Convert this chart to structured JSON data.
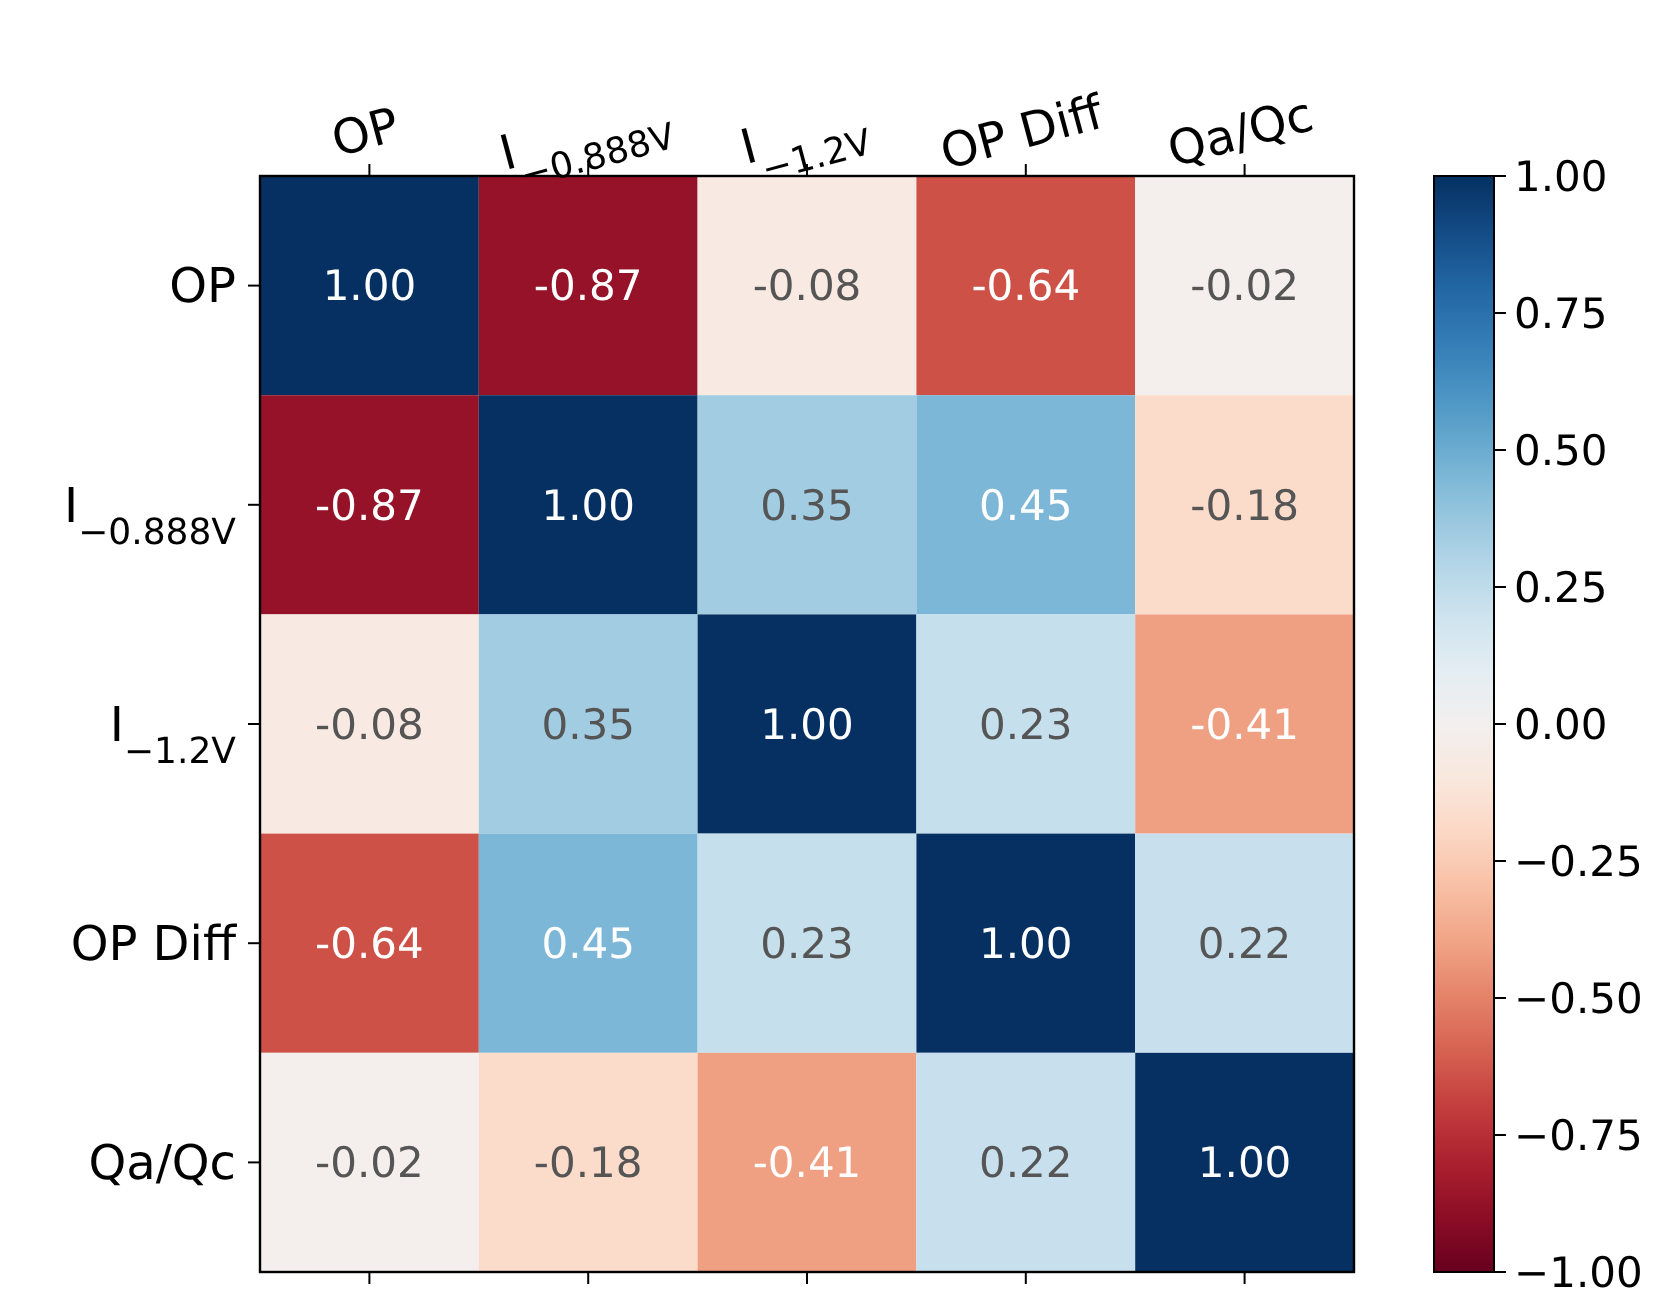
{
  "chart_data": {
    "type": "heatmap",
    "categories": [
      "OP",
      "I$_{−0.888V}$",
      "I$_{−1.2V}$",
      "OP Diff",
      "Qa/Qc"
    ],
    "y_categories": [
      "OP",
      "I$_{−0.888V}$",
      "I$_{−1.2V}$",
      "OP Diff",
      "Qa/Qc"
    ],
    "cells": [
      [
        1.0,
        -0.87,
        -0.08,
        -0.64,
        -0.02
      ],
      [
        -0.87,
        1.0,
        0.35,
        0.45,
        -0.18
      ],
      [
        -0.08,
        0.35,
        1.0,
        0.23,
        -0.41
      ],
      [
        -0.64,
        0.45,
        0.23,
        1.0,
        0.22
      ],
      [
        -0.02,
        -0.18,
        -0.41,
        0.22,
        1.0
      ]
    ],
    "cell_labels": [
      [
        "1.00",
        "-0.87",
        "-0.08",
        "-0.64",
        "-0.02"
      ],
      [
        "-0.87",
        "1.00",
        "0.35",
        "0.45",
        "-0.18"
      ],
      [
        "-0.08",
        "0.35",
        "1.00",
        "0.23",
        "-0.41"
      ],
      [
        "-0.64",
        "0.45",
        "0.23",
        "1.00",
        "0.22"
      ],
      [
        "-0.02",
        "-0.18",
        "-0.41",
        "0.22",
        "1.00"
      ]
    ],
    "clim": [
      -1,
      1
    ],
    "cticks": [
      {
        "value": 1,
        "label": "1.00"
      },
      {
        "value": 0.75,
        "label": "0.75"
      },
      {
        "value": 0.5,
        "label": "0.50"
      },
      {
        "value": 0.25,
        "label": "0.25"
      },
      {
        "value": 0,
        "label": "0.00"
      },
      {
        "value": -0.25,
        "label": "−0.25"
      },
      {
        "value": -0.5,
        "label": "−0.50"
      },
      {
        "value": -0.75,
        "label": "−0.75"
      },
      {
        "value": -1,
        "label": "−1.00"
      }
    ]
  }
}
